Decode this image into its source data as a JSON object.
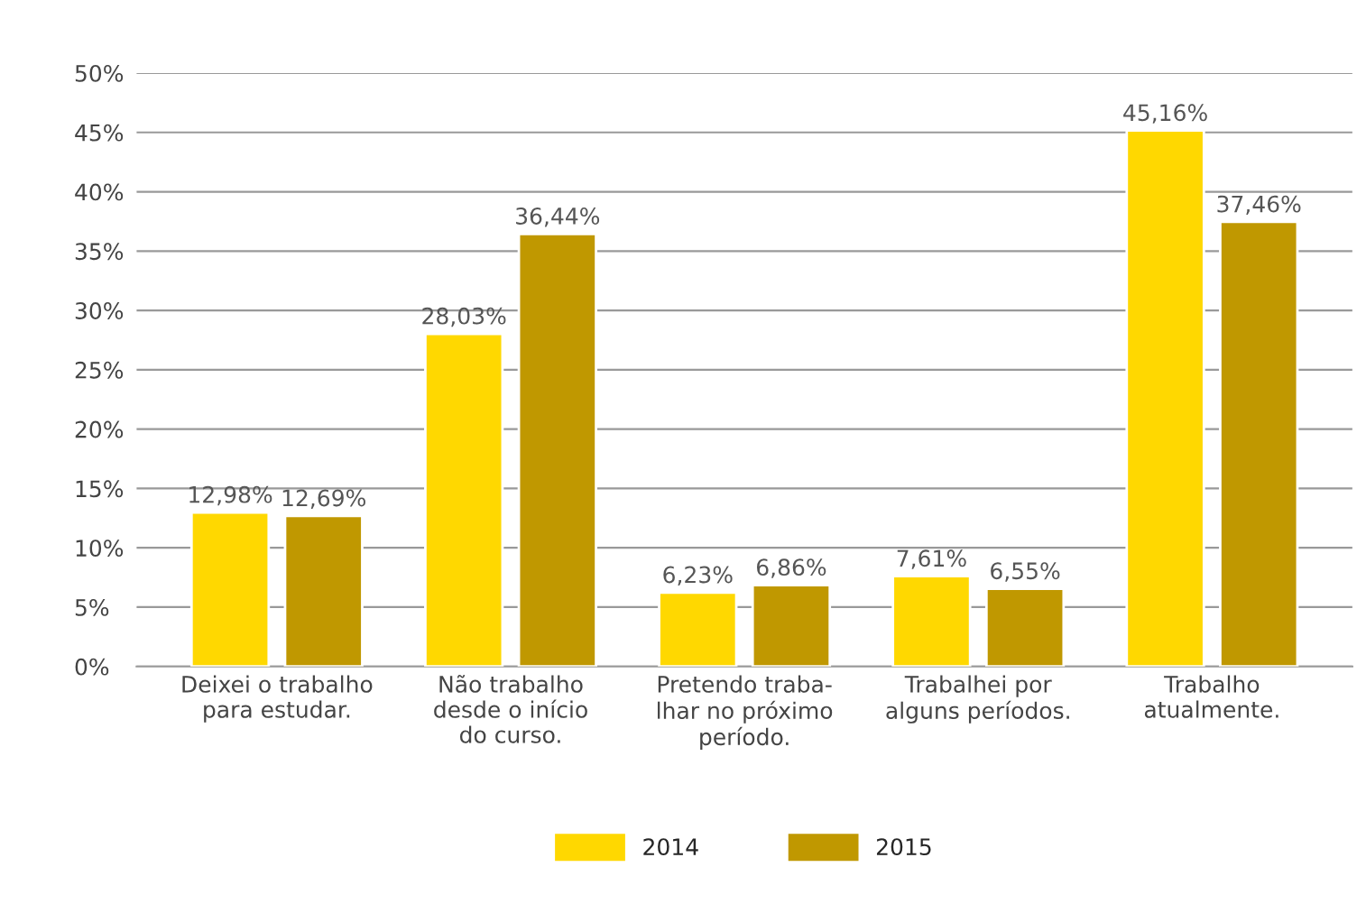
{
  "chart_data": {
    "type": "bar",
    "categories": [
      "Deixei o trabalho\npara estudar.",
      "Não trabalho\ndesde o início\ndo curso.",
      "Pretendo traba-\nlhar no próximo\nperíodo.",
      "Trabalhei por\nalguns períodos.",
      "Trabalho\natualmente."
    ],
    "series": [
      {
        "name": "2014",
        "color": "#ffd800",
        "values": [
          12.98,
          28.03,
          6.23,
          7.61,
          45.16
        ],
        "value_labels": [
          "12,98%",
          "28,03%",
          "6,23%",
          "7,61%",
          "45,16%"
        ]
      },
      {
        "name": "2015",
        "color": "#c09800",
        "values": [
          12.69,
          36.44,
          6.86,
          6.55,
          37.46
        ],
        "value_labels": [
          "12,69%",
          "36,44%",
          "6,86%",
          "6,55%",
          "37,46%"
        ]
      }
    ],
    "ylim": [
      0,
      50
    ],
    "yticks": [
      {
        "value": 0,
        "label": "0%"
      },
      {
        "value": 5,
        "label": "5%"
      },
      {
        "value": 10,
        "label": "10%"
      },
      {
        "value": 15,
        "label": "15%"
      },
      {
        "value": 20,
        "label": "20%"
      },
      {
        "value": 25,
        "label": "25%"
      },
      {
        "value": 30,
        "label": "30%"
      },
      {
        "value": 35,
        "label": "35%"
      },
      {
        "value": 40,
        "label": "40%"
      },
      {
        "value": 45,
        "label": "45%"
      },
      {
        "value": 50,
        "label": "50%"
      }
    ],
    "grid": "y",
    "legend": "bottom"
  }
}
